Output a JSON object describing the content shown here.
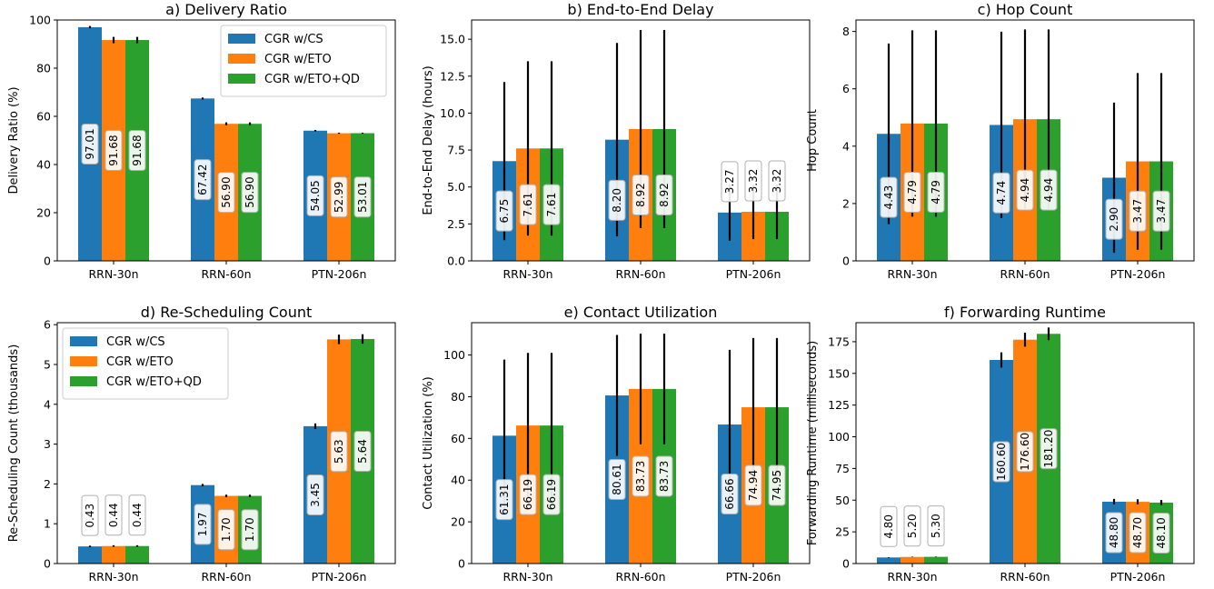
{
  "legend": [
    "CGR w/CS",
    "CGR w/ETO",
    "CGR w/ETO+QD"
  ],
  "colors": [
    "#1f77b4",
    "#ff7f0e",
    "#2ca02c"
  ],
  "chart_data": [
    {
      "type": "bar",
      "title": "a) Delivery Ratio",
      "ylabel": "Delivery Ratio (%)",
      "categories": [
        "RRN-30n",
        "RRN-60n",
        "PTN-206n"
      ],
      "ylim": [
        0,
        100
      ],
      "yticks": [
        0,
        20,
        40,
        60,
        80,
        100
      ],
      "yticklabels": [
        "0",
        "20",
        "40",
        "60",
        "80",
        "100"
      ],
      "legend": "top-right",
      "series": [
        {
          "name": "CGR w/CS",
          "values": [
            97.01,
            67.42,
            54.05
          ],
          "labels": [
            "97.01",
            "67.42",
            "54.05"
          ],
          "err": [
            0.5,
            0.4,
            0.3
          ]
        },
        {
          "name": "CGR w/ETO",
          "values": [
            91.68,
            56.9,
            52.99
          ],
          "labels": [
            "91.68",
            "56.90",
            "52.99"
          ],
          "err": [
            1.3,
            0.6,
            0.2
          ]
        },
        {
          "name": "CGR w/ETO+QD",
          "values": [
            91.68,
            56.9,
            53.01
          ],
          "labels": [
            "91.68",
            "56.90",
            "53.01"
          ],
          "err": [
            1.3,
            0.6,
            0.2
          ]
        }
      ]
    },
    {
      "type": "bar",
      "title": "b) End-to-End Delay",
      "ylabel": "End-to-End Delay (hours)",
      "categories": [
        "RRN-30n",
        "RRN-60n",
        "PTN-206n"
      ],
      "ylim": [
        0,
        16.3
      ],
      "yticks": [
        0,
        2.5,
        5,
        7.5,
        10,
        12.5,
        15
      ],
      "yticklabels": [
        "0.0",
        "2.5",
        "5.0",
        "7.5",
        "10.0",
        "12.5",
        "15.0"
      ],
      "series": [
        {
          "name": "CGR w/CS",
          "values": [
            6.75,
            8.2,
            3.27
          ],
          "labels": [
            "6.75",
            "8.20",
            "3.27"
          ],
          "err": [
            5.35,
            6.55,
            1.9
          ]
        },
        {
          "name": "CGR w/ETO",
          "values": [
            7.61,
            8.92,
            3.32
          ],
          "labels": [
            "7.61",
            "8.92",
            "3.32"
          ],
          "err": [
            5.9,
            6.7,
            1.85
          ]
        },
        {
          "name": "CGR w/ETO+QD",
          "values": [
            7.61,
            8.92,
            3.32
          ],
          "labels": [
            "7.61",
            "8.92",
            "3.32"
          ],
          "err": [
            5.9,
            6.7,
            1.85
          ]
        }
      ]
    },
    {
      "type": "bar",
      "title": "c) Hop Count",
      "ylabel": "Hop Count",
      "categories": [
        "RRN-30n",
        "RRN-60n",
        "PTN-206n"
      ],
      "ylim": [
        0,
        8.4
      ],
      "yticks": [
        0,
        2,
        4,
        6,
        8
      ],
      "yticklabels": [
        "0",
        "2",
        "4",
        "6",
        "8"
      ],
      "series": [
        {
          "name": "CGR w/CS",
          "values": [
            4.43,
            4.74,
            2.9
          ],
          "labels": [
            "4.43",
            "4.74",
            "2.90"
          ],
          "err": [
            3.15,
            3.25,
            2.62
          ]
        },
        {
          "name": "CGR w/ETO",
          "values": [
            4.79,
            4.94,
            3.47
          ],
          "labels": [
            "4.79",
            "4.94",
            "3.47"
          ],
          "err": [
            3.25,
            3.13,
            3.08
          ]
        },
        {
          "name": "CGR w/ETO+QD",
          "values": [
            4.79,
            4.94,
            3.47
          ],
          "labels": [
            "4.79",
            "4.94",
            "3.47"
          ],
          "err": [
            3.25,
            3.13,
            3.08
          ]
        }
      ]
    },
    {
      "type": "bar",
      "title": "d) Re-Scheduling Count",
      "ylabel": "Re-Scheduling Count (thousands)",
      "categories": [
        "RRN-30n",
        "RRN-60n",
        "PTN-206n"
      ],
      "ylim": [
        0,
        6.05
      ],
      "yticks": [
        0,
        1,
        2,
        3,
        4,
        5,
        6
      ],
      "yticklabels": [
        "0",
        "1",
        "2",
        "3",
        "4",
        "5",
        "6"
      ],
      "legend": "top-left",
      "series": [
        {
          "name": "CGR w/CS",
          "values": [
            0.43,
            1.97,
            3.45
          ],
          "labels": [
            "0.43",
            "1.97",
            "3.45"
          ],
          "err": [
            0.02,
            0.03,
            0.07
          ]
        },
        {
          "name": "CGR w/ETO",
          "values": [
            0.44,
            1.7,
            5.63
          ],
          "labels": [
            "0.44",
            "1.70",
            "5.63"
          ],
          "err": [
            0.02,
            0.03,
            0.12
          ]
        },
        {
          "name": "CGR w/ETO+QD",
          "values": [
            0.44,
            1.7,
            5.64
          ],
          "labels": [
            "0.44",
            "1.70",
            "5.64"
          ],
          "err": [
            0.02,
            0.03,
            0.12
          ]
        }
      ]
    },
    {
      "type": "bar",
      "title": "e) Contact Utilization",
      "ylabel": "Contact Utilization (%)",
      "categories": [
        "RRN-30n",
        "RRN-60n",
        "PTN-206n"
      ],
      "ylim": [
        0,
        115.5
      ],
      "yticks": [
        0,
        20,
        40,
        60,
        80,
        100
      ],
      "yticklabels": [
        "0",
        "20",
        "40",
        "60",
        "80",
        "100"
      ],
      "series": [
        {
          "name": "CGR w/CS",
          "values": [
            61.31,
            80.61,
            66.66
          ],
          "labels": [
            "61.31",
            "80.61",
            "66.66"
          ],
          "err": [
            36.5,
            29.0,
            35.8
          ]
        },
        {
          "name": "CGR w/ETO",
          "values": [
            66.19,
            83.73,
            74.94
          ],
          "labels": [
            "66.19",
            "83.73",
            "74.94"
          ],
          "err": [
            34.8,
            26.5,
            33.2
          ]
        },
        {
          "name": "CGR w/ETO+QD",
          "values": [
            66.19,
            83.73,
            74.95
          ],
          "labels": [
            "66.19",
            "83.73",
            "74.95"
          ],
          "err": [
            34.8,
            26.5,
            33.2
          ]
        }
      ]
    },
    {
      "type": "bar",
      "title": "f) Forwarding Runtime",
      "ylabel": "Forwarding Runtime (milliseconds)",
      "categories": [
        "RRN-30n",
        "RRN-60n",
        "PTN-206n"
      ],
      "ylim": [
        0,
        190
      ],
      "yticks": [
        0,
        25,
        50,
        75,
        100,
        125,
        150,
        175
      ],
      "yticklabels": [
        "0",
        "25",
        "50",
        "75",
        "100",
        "125",
        "150",
        "175"
      ],
      "series": [
        {
          "name": "CGR w/CS",
          "values": [
            4.8,
            160.6,
            48.8
          ],
          "labels": [
            "4.80",
            "160.60",
            "48.80"
          ],
          "err": [
            0.2,
            6.0,
            2.2
          ]
        },
        {
          "name": "CGR w/ETO",
          "values": [
            5.2,
            176.6,
            48.7
          ],
          "labels": [
            "5.20",
            "176.60",
            "48.70"
          ],
          "err": [
            0.2,
            5.5,
            2.0
          ]
        },
        {
          "name": "CGR w/ETO+QD",
          "values": [
            5.3,
            181.2,
            48.1
          ],
          "labels": [
            "5.30",
            "181.20",
            "48.10"
          ],
          "err": [
            0.2,
            5.0,
            2.0
          ]
        }
      ]
    }
  ]
}
